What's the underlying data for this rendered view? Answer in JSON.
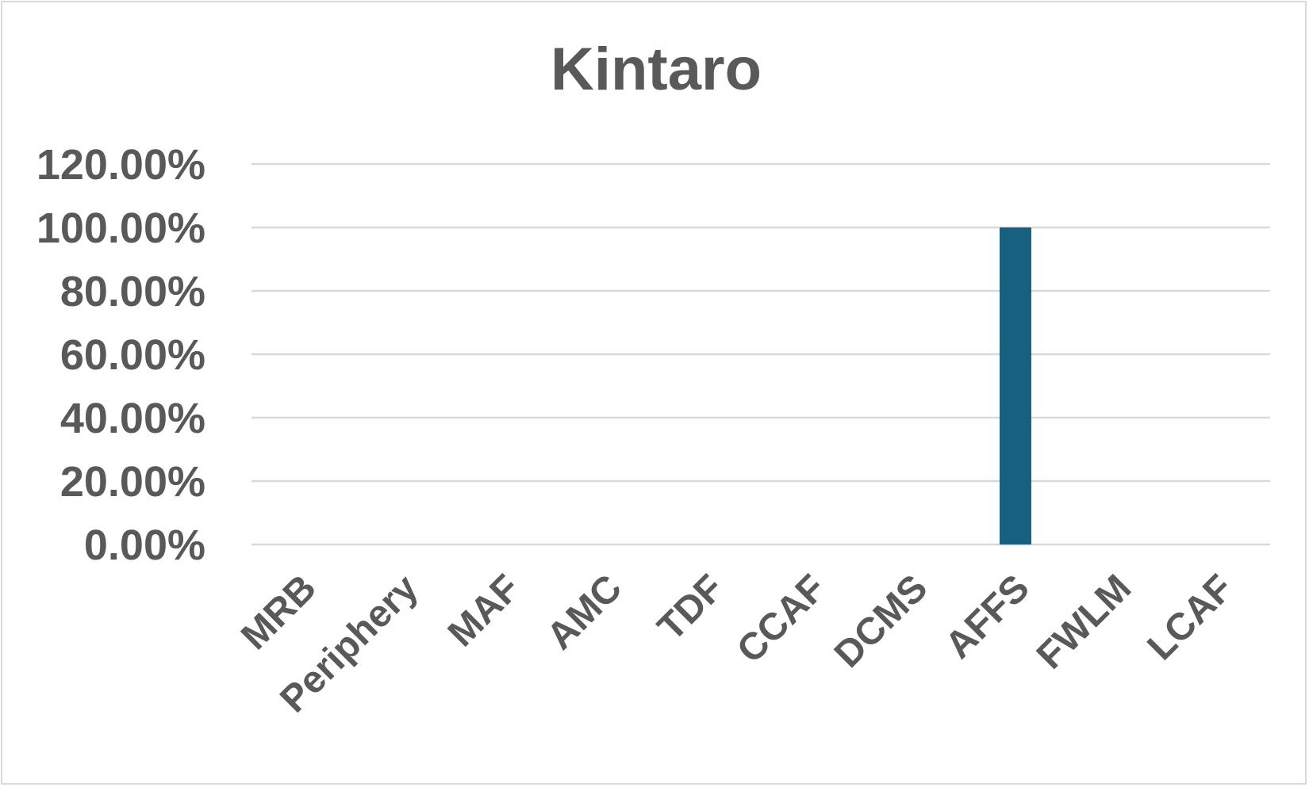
{
  "chart_data": {
    "type": "bar",
    "title": "Kintaro",
    "xlabel": "",
    "ylabel": "",
    "categories": [
      "MRB",
      "Periphery",
      "MAF",
      "AMC",
      "TDF",
      "CCAF",
      "DCMS",
      "AFFS",
      "FWLM",
      "LCAF"
    ],
    "values": [
      0,
      0,
      0,
      0,
      0,
      0,
      0,
      1.0,
      0,
      0
    ],
    "ylim": [
      0,
      1.2
    ],
    "yticks": [
      {
        "value": 0,
        "label": "0.00%"
      },
      {
        "value": 0.2,
        "label": "20.00%"
      },
      {
        "value": 0.4,
        "label": "40.00%"
      },
      {
        "value": 0.6,
        "label": "60.00%"
      },
      {
        "value": 0.8,
        "label": "80.00%"
      },
      {
        "value": 1.0,
        "label": "100.00%"
      },
      {
        "value": 1.2,
        "label": "120.00%"
      }
    ],
    "grid": true,
    "legend": "none",
    "bar_color": "#17607f"
  }
}
